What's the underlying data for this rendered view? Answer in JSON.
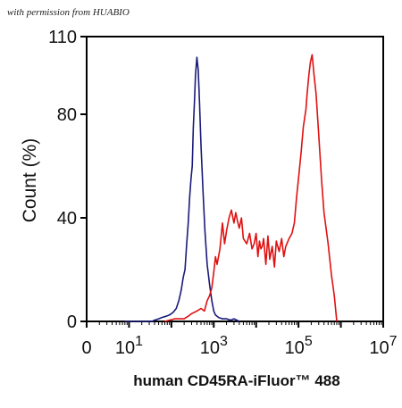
{
  "watermark": "with permission from HUABIO",
  "chart_data": {
    "type": "line",
    "title": "",
    "xlabel": "human CD45RA-iFluor™ 488",
    "ylabel": "Count  (%)",
    "x_scale": "log",
    "xlim": [
      1,
      10000000
    ],
    "ylim": [
      0,
      110
    ],
    "grid": false,
    "legend": "none",
    "x_ticks": [
      {
        "value": 1,
        "label": "0",
        "sup": ""
      },
      {
        "value": 10,
        "label": "10",
        "sup": "1"
      },
      {
        "value": 1000,
        "label": "10",
        "sup": "3"
      },
      {
        "value": 100000,
        "label": "10",
        "sup": "5"
      },
      {
        "value": 10000000,
        "label": "10",
        "sup": "7"
      }
    ],
    "y_ticks": [
      {
        "value": 0,
        "label": "0"
      },
      {
        "value": 40,
        "label": "40"
      },
      {
        "value": 80,
        "label": "80"
      },
      {
        "value": 110,
        "label": "110"
      }
    ],
    "series": [
      {
        "color": "#1a1a7a",
        "x": [
          8,
          15,
          25,
          35,
          40,
          50,
          60,
          75,
          90,
          110,
          130,
          150,
          170,
          190,
          210,
          230,
          250,
          270,
          290,
          310,
          330,
          350,
          370,
          400,
          430,
          460,
          500,
          560,
          620,
          700,
          800,
          900,
          1000,
          1100,
          1300,
          1600,
          2000,
          2500,
          3000,
          3500,
          4000
        ],
        "values": [
          0,
          0,
          0,
          0,
          0.5,
          1,
          1.5,
          2,
          2.5,
          3.5,
          5,
          8,
          12,
          17,
          20,
          30,
          38,
          48,
          55,
          60,
          75,
          85,
          95,
          102,
          97,
          85,
          68,
          50,
          35,
          22,
          14,
          8,
          4,
          2.5,
          1.5,
          1,
          1,
          0.5,
          1,
          0.5,
          0
        ]
      },
      {
        "color": "#e01010",
        "x": [
          70,
          90,
          120,
          150,
          200,
          250,
          300,
          400,
          500,
          600,
          700,
          800,
          900,
          1000,
          1100,
          1200,
          1400,
          1600,
          1800,
          2000,
          2300,
          2600,
          3000,
          3300,
          3600,
          4000,
          4500,
          5000,
          6000,
          7000,
          8000,
          9000,
          10000,
          11000,
          12000,
          13000,
          14000,
          15000,
          17000,
          19000,
          21000,
          24000,
          27000,
          30000,
          35000,
          40000,
          45000,
          50000,
          60000,
          70000,
          80000,
          90000,
          100000,
          115000,
          130000,
          150000,
          160000,
          175000,
          190000,
          210000,
          230000,
          260000,
          300000,
          350000,
          400000,
          500000,
          600000,
          700000,
          800000
        ],
        "values": [
          0,
          0.5,
          1,
          1,
          1,
          2,
          3,
          4,
          5,
          4,
          8,
          10,
          13,
          19,
          25,
          22,
          28,
          38,
          30,
          35,
          40,
          43,
          38,
          42,
          39,
          36,
          40,
          32,
          30,
          34,
          28,
          30,
          34,
          25,
          31,
          28,
          29,
          32,
          22,
          33,
          24,
          29,
          21,
          31,
          27,
          32,
          25,
          29,
          32,
          34,
          38,
          48,
          55,
          65,
          75,
          82,
          88,
          95,
          100,
          103,
          96,
          88,
          72,
          55,
          42,
          30,
          18,
          10,
          0
        ]
      }
    ]
  }
}
